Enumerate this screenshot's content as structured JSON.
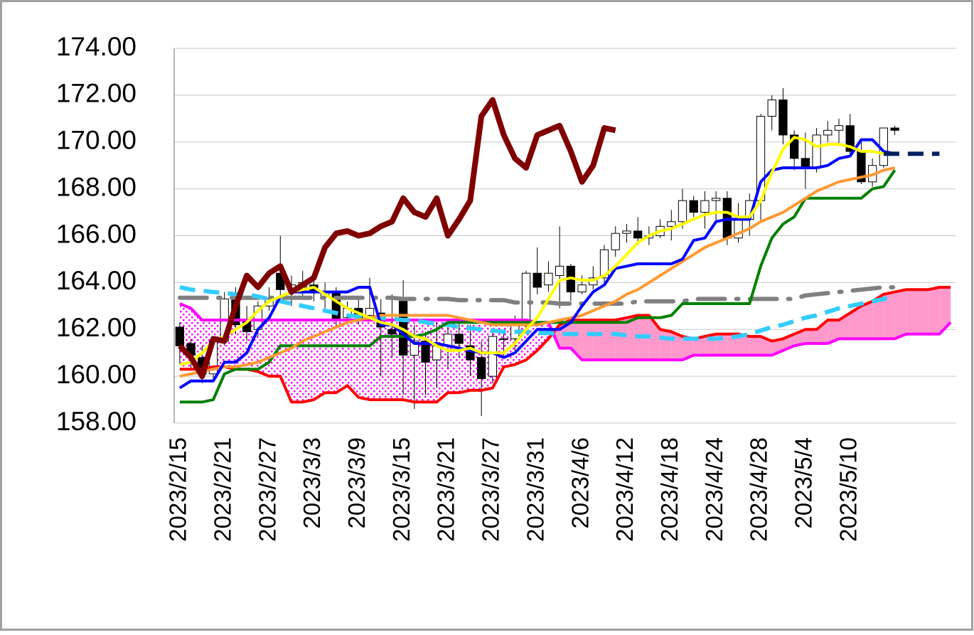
{
  "chart_data": {
    "type": "candlestick",
    "categories": [
      "2023/2/15",
      null,
      null,
      null,
      "2023/2/21",
      null,
      null,
      null,
      "2023/2/27",
      null,
      null,
      null,
      "2023/3/3",
      null,
      null,
      null,
      "2023/3/9",
      null,
      null,
      null,
      "2023/3/15",
      null,
      null,
      null,
      "2023/3/21",
      null,
      null,
      null,
      "2023/3/27",
      null,
      null,
      null,
      "2023/3/31",
      null,
      null,
      null,
      "2023/4/6",
      null,
      null,
      null,
      "2023/4/12",
      null,
      null,
      null,
      "2023/4/18",
      null,
      null,
      null,
      "2023/4/24",
      null,
      null,
      null,
      "2023/4/28",
      null,
      null,
      null,
      "2023/5/4",
      null,
      null,
      null,
      "2023/5/10",
      null,
      null,
      null,
      null,
      null,
      null,
      null,
      null,
      null
    ],
    "ylim": [
      158,
      174
    ],
    "yticks": [
      {
        "value": 158,
        "label": "158.00"
      },
      {
        "value": 160,
        "label": "160.00"
      },
      {
        "value": 162,
        "label": "162.00"
      },
      {
        "value": 164,
        "label": "164.00"
      },
      {
        "value": 166,
        "label": "166.00"
      },
      {
        "value": 168,
        "label": "168.00"
      },
      {
        "value": 170,
        "label": "170.00"
      },
      {
        "value": 172,
        "label": "172.00"
      },
      {
        "value": 174,
        "label": "174.00"
      }
    ],
    "grid": true,
    "candles": {
      "up_color": "#ffffff",
      "down_color": "#000000",
      "open": [
        162.1,
        161.4,
        160.8,
        160.1,
        161.5,
        163.4,
        162.4,
        162.0,
        163.0,
        164.4,
        163.7,
        163.8,
        163.9,
        163.4,
        163.6,
        162.5,
        162.9,
        162.6,
        162.7,
        162.0,
        163.2,
        160.9,
        161.5,
        160.7,
        161.3,
        161.8,
        161.3,
        160.8,
        160.0,
        161.6,
        161.6,
        162.3,
        164.4,
        163.9,
        164.3,
        164.7,
        163.6,
        163.9,
        164.2,
        165.4,
        166.1,
        166.2,
        165.9,
        166.0,
        166.4,
        166.6,
        167.5,
        167.0,
        167.5,
        167.6,
        165.9,
        166.7,
        167.5,
        171.1,
        171.8,
        170.3,
        169.3,
        168.9,
        170.3,
        170.5,
        170.7,
        169.6,
        168.3,
        169.0,
        170.6,
        null,
        null,
        null,
        null,
        null
      ],
      "high": [
        162.3,
        161.6,
        161.3,
        161.7,
        163.6,
        163.8,
        163.0,
        163.2,
        163.8,
        166.0,
        164.3,
        164.5,
        164.3,
        164.0,
        163.8,
        163.2,
        163.4,
        164.2,
        163.3,
        163.5,
        164.1,
        162.2,
        161.9,
        162.3,
        162.1,
        162.4,
        162.2,
        161.5,
        162.0,
        161.9,
        162.6,
        164.5,
        165.5,
        164.9,
        166.4,
        164.8,
        164.3,
        164.7,
        165.6,
        166.4,
        166.5,
        166.8,
        166.4,
        166.7,
        167.1,
        168.0,
        167.7,
        167.9,
        167.9,
        167.9,
        167.4,
        167.8,
        171.2,
        172.0,
        172.3,
        170.5,
        170.4,
        170.6,
        170.9,
        171.0,
        171.2,
        170.0,
        169.3,
        170.6,
        170.7,
        null,
        null,
        null,
        null,
        null
      ],
      "low": [
        160.5,
        160.3,
        159.7,
        159.9,
        161.3,
        161.8,
        161.5,
        161.7,
        162.8,
        163.4,
        163.0,
        163.3,
        163.2,
        162.9,
        162.1,
        162.2,
        162.2,
        162.4,
        160.0,
        160.8,
        159.2,
        158.6,
        159.2,
        159.5,
        160.3,
        160.8,
        160.0,
        158.3,
        159.7,
        160.8,
        161.1,
        162.0,
        163.5,
        163.6,
        162.9,
        163.2,
        163.5,
        163.7,
        164.0,
        165.1,
        165.7,
        165.6,
        165.6,
        165.9,
        165.8,
        166.3,
        166.8,
        166.3,
        166.6,
        165.6,
        165.7,
        166.0,
        166.6,
        170.5,
        169.9,
        168.8,
        168.0,
        168.7,
        170.0,
        169.9,
        169.4,
        168.2,
        168.1,
        168.9,
        170.3,
        null,
        null,
        null,
        null,
        null
      ],
      "close": [
        161.3,
        160.9,
        160.1,
        161.5,
        163.3,
        162.2,
        161.9,
        163.0,
        163.3,
        163.7,
        163.9,
        164.0,
        163.6,
        163.6,
        162.4,
        162.9,
        162.5,
        162.9,
        162.1,
        161.8,
        160.9,
        161.5,
        160.6,
        161.3,
        161.8,
        161.4,
        160.7,
        159.9,
        161.7,
        161.6,
        162.3,
        164.4,
        163.8,
        164.4,
        164.7,
        163.6,
        163.9,
        164.2,
        165.4,
        166.1,
        166.2,
        165.9,
        166.0,
        166.4,
        166.6,
        167.5,
        167.0,
        167.5,
        167.6,
        165.9,
        166.7,
        167.5,
        171.1,
        171.8,
        170.3,
        169.3,
        168.9,
        170.3,
        170.5,
        170.7,
        169.6,
        168.3,
        169.0,
        170.6,
        170.5,
        null,
        null,
        null,
        null,
        null
      ]
    },
    "cloud": {
      "bullish_color": "#ff99cc",
      "bearish_color": "#ff00ff",
      "span_a": {
        "color": "#ff0000",
        "values": [
          160.3,
          160.3,
          160.3,
          160.4,
          160.4,
          160.3,
          160.3,
          160.2,
          160.0,
          160.0,
          158.9,
          158.9,
          159.0,
          159.3,
          159.3,
          159.6,
          159.1,
          159.0,
          159.0,
          159.0,
          159.0,
          158.9,
          158.9,
          158.9,
          159.3,
          159.3,
          159.4,
          159.4,
          159.5,
          160.4,
          160.5,
          160.7,
          161.1,
          161.6,
          162.2,
          162.4,
          162.4,
          162.4,
          162.4,
          162.4,
          162.5,
          162.6,
          162.6,
          162.0,
          161.9,
          161.7,
          161.6,
          161.7,
          161.8,
          161.8,
          161.8,
          161.7,
          161.7,
          161.5,
          161.6,
          161.8,
          162.0,
          162.0,
          162.4,
          162.4,
          162.7,
          163.0,
          163.2,
          163.5,
          163.6,
          163.7,
          163.7,
          163.7,
          163.8,
          163.8
        ]
      },
      "span_b": {
        "color": "#ff00ff",
        "values": [
          163.1,
          162.9,
          162.4,
          162.4,
          162.4,
          162.4,
          162.4,
          162.4,
          162.4,
          162.4,
          162.4,
          162.4,
          162.4,
          162.4,
          162.4,
          162.4,
          162.4,
          162.4,
          162.4,
          162.4,
          162.4,
          162.4,
          162.4,
          162.4,
          162.4,
          162.4,
          162.4,
          162.4,
          162.4,
          162.4,
          162.4,
          162.4,
          162.3,
          162.3,
          161.2,
          161.2,
          160.7,
          160.7,
          160.7,
          160.7,
          160.7,
          160.7,
          160.7,
          160.7,
          160.7,
          160.7,
          160.9,
          160.9,
          160.9,
          160.9,
          160.9,
          160.9,
          160.9,
          160.9,
          161.1,
          161.3,
          161.4,
          161.4,
          161.4,
          161.6,
          161.6,
          161.6,
          161.6,
          161.6,
          161.6,
          161.8,
          161.8,
          161.8,
          161.8,
          162.3
        ]
      }
    },
    "lines": [
      {
        "color": "#808080",
        "dash": "dash-dot",
        "values": [
          163.35,
          163.35,
          163.35,
          163.35,
          163.35,
          163.35,
          163.35,
          163.35,
          163.35,
          163.35,
          163.35,
          163.35,
          163.35,
          163.35,
          163.35,
          163.35,
          163.35,
          163.35,
          163.35,
          163.35,
          163.3,
          163.3,
          163.3,
          163.3,
          163.3,
          163.25,
          163.25,
          163.25,
          163.25,
          163.25,
          163.15,
          163.15,
          163.15,
          163.15,
          163.1,
          163.1,
          163.1,
          163.1,
          163.1,
          163.1,
          163.1,
          163.2,
          163.2,
          163.2,
          163.2,
          163.2,
          163.3,
          163.3,
          163.3,
          163.3,
          163.3,
          163.3,
          163.3,
          163.3,
          163.3,
          163.3,
          163.45,
          163.5,
          163.55,
          163.6,
          163.65,
          163.7,
          163.75,
          163.8,
          163.8,
          null,
          null,
          null,
          null,
          null
        ]
      },
      {
        "color": "#33ccff",
        "dash": "dashed",
        "values": [
          163.8,
          163.7,
          163.65,
          163.6,
          163.55,
          163.5,
          163.5,
          163.4,
          163.3,
          163.2,
          163.1,
          163.0,
          162.9,
          162.8,
          162.7,
          162.6,
          162.55,
          162.5,
          162.5,
          162.45,
          162.4,
          162.4,
          162.3,
          162.25,
          162.2,
          162.1,
          162.05,
          162.0,
          161.95,
          161.9,
          161.9,
          161.9,
          161.85,
          161.85,
          161.8,
          161.8,
          161.8,
          161.8,
          161.8,
          161.8,
          161.75,
          161.7,
          161.7,
          161.65,
          161.6,
          161.6,
          161.6,
          161.6,
          161.6,
          161.65,
          161.7,
          161.8,
          161.95,
          162.1,
          162.2,
          162.35,
          162.5,
          162.6,
          162.75,
          162.9,
          163.0,
          163.1,
          163.2,
          163.3,
          163.4,
          null,
          null,
          null,
          null,
          null
        ]
      },
      {
        "color": "#008000",
        "dash": "solid",
        "values": [
          158.9,
          158.9,
          158.9,
          159.0,
          160.1,
          160.3,
          160.3,
          160.3,
          160.6,
          161.3,
          161.3,
          161.3,
          161.3,
          161.3,
          161.3,
          161.3,
          161.3,
          161.3,
          161.7,
          161.7,
          161.7,
          161.7,
          161.8,
          162.0,
          162.3,
          162.3,
          162.3,
          162.3,
          162.3,
          162.3,
          162.3,
          162.3,
          162.3,
          162.3,
          162.3,
          162.3,
          162.3,
          162.3,
          162.3,
          162.3,
          162.3,
          162.5,
          162.5,
          162.5,
          162.6,
          163.1,
          163.1,
          163.1,
          163.1,
          163.1,
          163.1,
          163.1,
          164.7,
          165.9,
          166.5,
          166.8,
          167.6,
          167.6,
          167.6,
          167.6,
          167.6,
          167.6,
          168.0,
          168.1,
          168.8,
          null,
          null,
          null,
          null,
          null
        ]
      },
      {
        "color": "#ff9933",
        "dash": "solid",
        "values": [
          160.0,
          160.1,
          160.2,
          160.3,
          160.4,
          160.4,
          160.5,
          160.6,
          160.8,
          161.0,
          161.2,
          161.5,
          161.7,
          161.9,
          162.1,
          162.3,
          162.4,
          162.5,
          162.6,
          162.6,
          162.6,
          162.6,
          162.6,
          162.6,
          162.6,
          162.5,
          162.4,
          162.3,
          162.2,
          162.2,
          162.2,
          162.2,
          162.2,
          162.3,
          162.4,
          162.5,
          162.6,
          162.8,
          163.0,
          163.2,
          163.5,
          163.7,
          164.0,
          164.3,
          164.6,
          164.9,
          165.2,
          165.5,
          165.7,
          165.9,
          166.1,
          166.3,
          166.6,
          166.8,
          167.0,
          167.3,
          167.6,
          167.9,
          168.1,
          168.3,
          168.4,
          168.5,
          168.6,
          168.8,
          168.9,
          null,
          null,
          null,
          null,
          null
        ]
      },
      {
        "color": "#0000ff",
        "dash": "solid",
        "values": [
          159.5,
          159.8,
          159.8,
          159.8,
          160.6,
          160.6,
          161.0,
          162.0,
          162.5,
          163.4,
          163.6,
          163.6,
          163.6,
          163.6,
          163.6,
          163.6,
          163.8,
          163.8,
          162.2,
          162.2,
          161.8,
          161.4,
          161.4,
          161.4,
          161.3,
          161.2,
          161.1,
          161.0,
          161.0,
          160.8,
          161.0,
          161.5,
          162.0,
          162.0,
          162.0,
          162.3,
          163.0,
          163.6,
          163.9,
          164.6,
          164.7,
          164.8,
          164.8,
          164.8,
          164.8,
          165.0,
          165.8,
          165.9,
          166.6,
          166.7,
          166.7,
          166.7,
          168.3,
          168.8,
          168.9,
          168.9,
          168.9,
          168.9,
          169.0,
          169.3,
          169.4,
          170.1,
          170.1,
          169.6,
          169.5,
          null,
          null,
          null,
          null,
          null
        ]
      },
      {
        "color": "#ffff00",
        "dash": "solid",
        "values": [
          160.5,
          160.6,
          161.0,
          161.5,
          161.7,
          162.0,
          162.3,
          162.8,
          163.2,
          163.4,
          163.6,
          163.7,
          163.8,
          163.5,
          163.2,
          162.9,
          162.7,
          162.5,
          162.3,
          162.2,
          162.0,
          161.7,
          161.6,
          161.3,
          161.1,
          161.1,
          161.2,
          161.0,
          161.0,
          161.0,
          161.4,
          162.0,
          162.5,
          163.3,
          164.1,
          164.2,
          164.1,
          164.1,
          164.3,
          164.7,
          165.2,
          165.7,
          166.0,
          166.2,
          166.3,
          166.5,
          166.7,
          166.9,
          167.0,
          167.0,
          166.8,
          166.8,
          167.5,
          168.7,
          169.7,
          170.2,
          170.1,
          169.8,
          169.9,
          169.9,
          169.8,
          169.6,
          169.6,
          169.5,
          169.5,
          null,
          null,
          null,
          null,
          null
        ]
      },
      {
        "color": "#002060",
        "dash": "dashed",
        "values": [
          null,
          null,
          null,
          null,
          null,
          null,
          null,
          null,
          null,
          null,
          null,
          null,
          null,
          null,
          null,
          null,
          null,
          null,
          null,
          null,
          null,
          null,
          null,
          null,
          null,
          null,
          null,
          null,
          null,
          null,
          null,
          null,
          null,
          null,
          null,
          null,
          null,
          null,
          null,
          null,
          null,
          null,
          null,
          null,
          null,
          null,
          null,
          null,
          null,
          null,
          null,
          null,
          null,
          null,
          null,
          null,
          null,
          null,
          null,
          null,
          null,
          null,
          null,
          169.5,
          169.5,
          169.5,
          169.5,
          169.5,
          169.5,
          null
        ]
      }
    ],
    "lagging_span": {
      "color": "#800000",
      "values": [
        161.3,
        160.8,
        160.0,
        161.6,
        161.5,
        163.0,
        164.3,
        163.8,
        164.4,
        164.7,
        163.6,
        163.9,
        164.2,
        165.5,
        166.1,
        166.2,
        166.0,
        166.1,
        166.4,
        166.6,
        167.6,
        167.0,
        166.8,
        167.6,
        166.0,
        166.7,
        167.5,
        171.1,
        171.8,
        170.3,
        169.3,
        168.9,
        170.3,
        170.5,
        170.7,
        169.6,
        168.3,
        169.0,
        170.6,
        170.5,
        null,
        null,
        null,
        null,
        null,
        null,
        null,
        null,
        null,
        null,
        null,
        null,
        null,
        null,
        null,
        null,
        null,
        null,
        null,
        null,
        null,
        null,
        null,
        null,
        null,
        null,
        null,
        null,
        null,
        null
      ]
    }
  }
}
